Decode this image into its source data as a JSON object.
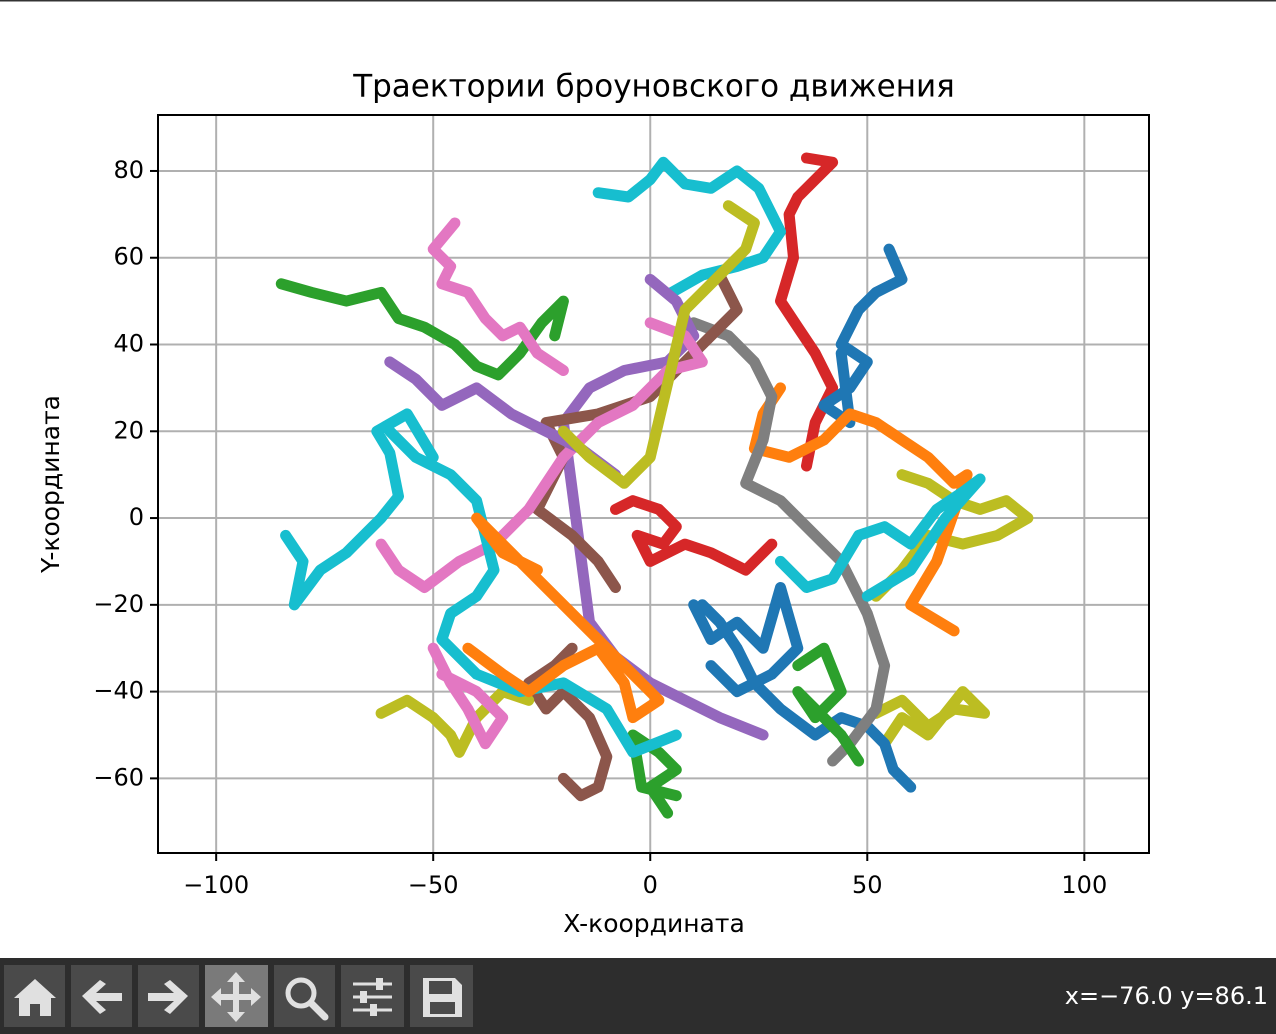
{
  "chart_data": {
    "type": "line",
    "title": "Траектории броуновского движения",
    "xlabel": "X-координата",
    "ylabel": "Y-координата",
    "xlim": [
      -113.4,
      114.9
    ],
    "ylim": [
      -77.2,
      92.9
    ],
    "xticks": [
      {
        "value": -100,
        "label": "−100"
      },
      {
        "value": -50,
        "label": "−50"
      },
      0,
      50,
      100
    ],
    "yticks": [
      {
        "value": -60,
        "label": "−60"
      },
      {
        "value": -40,
        "label": "−40"
      },
      {
        "value": -20,
        "label": "−20"
      },
      0,
      20,
      40,
      60,
      80
    ],
    "grid": true,
    "series": [
      {
        "color": "#2ca02c",
        "x": [
          -85,
          -78,
          -70,
          -62,
          -58,
          -52,
          -45,
          -40,
          -35,
          -30,
          -25,
          -20,
          -22
        ],
        "values": [
          54,
          52,
          50,
          52,
          46,
          44,
          40,
          35,
          33,
          38,
          45,
          50,
          42
        ]
      },
      {
        "color": "#17becf",
        "x": [
          -84,
          -80,
          -82,
          -76,
          -70,
          -66,
          -62,
          -58,
          -60,
          -63,
          -56,
          -50
        ],
        "values": [
          -4,
          -10,
          -20,
          -12,
          -8,
          -4,
          0,
          5,
          15,
          20,
          24,
          14
        ]
      },
      {
        "color": "#d62728",
        "x": [
          36,
          42,
          38,
          34,
          32,
          33,
          30,
          34,
          38,
          42,
          38,
          36
        ],
        "values": [
          83,
          82,
          78,
          74,
          70,
          60,
          50,
          44,
          38,
          30,
          22,
          12
        ]
      },
      {
        "color": "#17becf",
        "x": [
          -12,
          -5,
          0,
          3,
          8,
          14,
          20,
          25,
          30,
          26,
          20,
          12,
          5
        ],
        "values": [
          75,
          74,
          78,
          82,
          77,
          76,
          80,
          76,
          66,
          60,
          58,
          56,
          52
        ]
      },
      {
        "color": "#bcbd22",
        "x": [
          58,
          64,
          70,
          76,
          82,
          87,
          80,
          72,
          64,
          58,
          52
        ],
        "values": [
          10,
          8,
          4,
          2,
          4,
          0,
          -4,
          -6,
          -4,
          -12,
          -18
        ]
      },
      {
        "color": "#bcbd22",
        "x": [
          52,
          58,
          64,
          70,
          77,
          72,
          64,
          58,
          54
        ],
        "values": [
          -45,
          -42,
          -48,
          -44,
          -45,
          -40,
          -50,
          -46,
          -52
        ]
      },
      {
        "color": "#1f77b4",
        "x": [
          55,
          58,
          52,
          48,
          44,
          50,
          46,
          40,
          46,
          44
        ],
        "values": [
          62,
          55,
          52,
          48,
          40,
          36,
          30,
          26,
          22,
          38
        ]
      },
      {
        "color": "#1f77b4",
        "x": [
          60,
          56,
          54,
          50,
          44,
          38,
          30,
          24,
          20,
          16,
          12
        ],
        "values": [
          -62,
          -58,
          -52,
          -48,
          -46,
          -50,
          -44,
          -38,
          -30,
          -24,
          -20
        ]
      },
      {
        "color": "#2ca02c",
        "x": [
          4,
          0,
          6,
          2,
          -4,
          -2,
          6
        ],
        "values": [
          -68,
          -62,
          -58,
          -54,
          -50,
          -62,
          -64
        ]
      },
      {
        "color": "#8c564b",
        "x": [
          -20,
          -16,
          -12,
          -10,
          -14,
          -20,
          -24,
          -28,
          -22,
          -18
        ],
        "values": [
          -60,
          -64,
          -62,
          -55,
          -46,
          -40,
          -44,
          -38,
          -34,
          -30
        ]
      },
      {
        "color": "#e377c2",
        "x": [
          -45,
          -50,
          -46,
          -48,
          -42,
          -38,
          -34,
          -30,
          -26,
          -20
        ],
        "values": [
          68,
          62,
          58,
          54,
          52,
          46,
          42,
          44,
          38,
          34
        ]
      },
      {
        "color": "#bcbd22",
        "x": [
          -62,
          -56,
          -50,
          -46,
          -44,
          -40,
          -34,
          -28
        ],
        "values": [
          -45,
          -42,
          -46,
          -50,
          -54,
          -46,
          -40,
          -42
        ]
      },
      {
        "color": "#e377c2",
        "x": [
          -50,
          -46,
          -42,
          -38,
          -34,
          -40,
          -48
        ],
        "values": [
          -30,
          -38,
          -44,
          -52,
          -46,
          -40,
          -36
        ]
      },
      {
        "color": "#d62728",
        "x": [
          -8,
          -4,
          2,
          6,
          3,
          -3,
          0,
          8,
          14,
          22,
          28
        ],
        "values": [
          2,
          4,
          2,
          -2,
          -6,
          -4,
          -10,
          -6,
          -8,
          -12,
          -6
        ]
      },
      {
        "color": "#ff7f0e",
        "x": [
          30,
          26,
          24,
          32,
          40,
          46,
          52,
          58,
          64,
          70,
          73,
          66,
          60,
          70
        ],
        "values": [
          30,
          24,
          16,
          14,
          18,
          24,
          22,
          18,
          14,
          8,
          10,
          -10,
          -20,
          -26
        ]
      },
      {
        "color": "#7f7f7f",
        "x": [
          10,
          18,
          24,
          28,
          26,
          22,
          30,
          36,
          44,
          50,
          54,
          52,
          46,
          42
        ],
        "values": [
          45,
          42,
          36,
          28,
          18,
          8,
          4,
          -2,
          -10,
          -22,
          -34,
          -44,
          -52,
          -56
        ]
      },
      {
        "color": "#9467bd",
        "x": [
          0,
          6,
          10,
          4,
          -6,
          -14,
          -20,
          -14,
          -8,
          0,
          8,
          16,
          26
        ],
        "values": [
          55,
          50,
          42,
          36,
          34,
          30,
          22,
          -24,
          -32,
          -38,
          -42,
          -46,
          -50
        ]
      },
      {
        "color": "#8c564b",
        "x": [
          16,
          20,
          14,
          0,
          -12,
          -24,
          -20,
          -26,
          -18,
          -12,
          -8
        ],
        "values": [
          56,
          48,
          42,
          28,
          24,
          22,
          14,
          2,
          -4,
          -10,
          -16
        ]
      },
      {
        "color": "#e377c2",
        "x": [
          0,
          8,
          12,
          4,
          -4,
          -12,
          -20,
          -28,
          -36,
          -44,
          -52,
          -58,
          -62
        ],
        "values": [
          45,
          42,
          36,
          34,
          26,
          22,
          14,
          2,
          -6,
          -10,
          -16,
          -12,
          -6
        ]
      },
      {
        "color": "#17becf",
        "x": [
          -60,
          -54,
          -46,
          -40,
          -36,
          -40,
          -46,
          -48,
          -40,
          -30,
          -20,
          -10,
          -4,
          6
        ],
        "values": [
          20,
          14,
          10,
          4,
          -12,
          -18,
          -22,
          -28,
          -36,
          -40,
          -38,
          -44,
          -54,
          -50
        ]
      },
      {
        "color": "#17becf",
        "x": [
          30,
          36,
          42,
          48,
          54,
          60,
          66,
          72,
          76,
          68,
          60,
          50
        ],
        "values": [
          -10,
          -16,
          -14,
          -4,
          -2,
          -6,
          2,
          6,
          9,
          0,
          -12,
          -18
        ]
      },
      {
        "color": "#1f77b4",
        "x": [
          10,
          14,
          20,
          26,
          30,
          34,
          28,
          20,
          14
        ],
        "values": [
          -20,
          -28,
          -24,
          -30,
          -16,
          -30,
          -36,
          -40,
          -34
        ]
      },
      {
        "color": "#ff7f0e",
        "x": [
          -42,
          -34,
          -28,
          -20,
          -12,
          -6,
          -4,
          2,
          -40,
          -34,
          -26
        ],
        "values": [
          -30,
          -36,
          -40,
          -34,
          -30,
          -38,
          -46,
          -42,
          0,
          -8,
          -12
        ]
      },
      {
        "color": "#2ca02c",
        "x": [
          34,
          40,
          44,
          38,
          34,
          44,
          48
        ],
        "values": [
          -34,
          -30,
          -40,
          -46,
          -40,
          -50,
          -56
        ]
      },
      {
        "color": "#9467bd",
        "x": [
          -60,
          -54,
          -48,
          -40,
          -32,
          -24,
          -16,
          -8
        ],
        "values": [
          36,
          32,
          26,
          30,
          24,
          20,
          16,
          10
        ]
      },
      {
        "color": "#bcbd22",
        "x": [
          18,
          24,
          22,
          16,
          8,
          0,
          -6,
          -14,
          -20
        ],
        "values": [
          72,
          68,
          62,
          56,
          48,
          14,
          8,
          14,
          20
        ]
      }
    ]
  },
  "toolbar": {
    "coords": "x=−76.0 y=86.1"
  }
}
